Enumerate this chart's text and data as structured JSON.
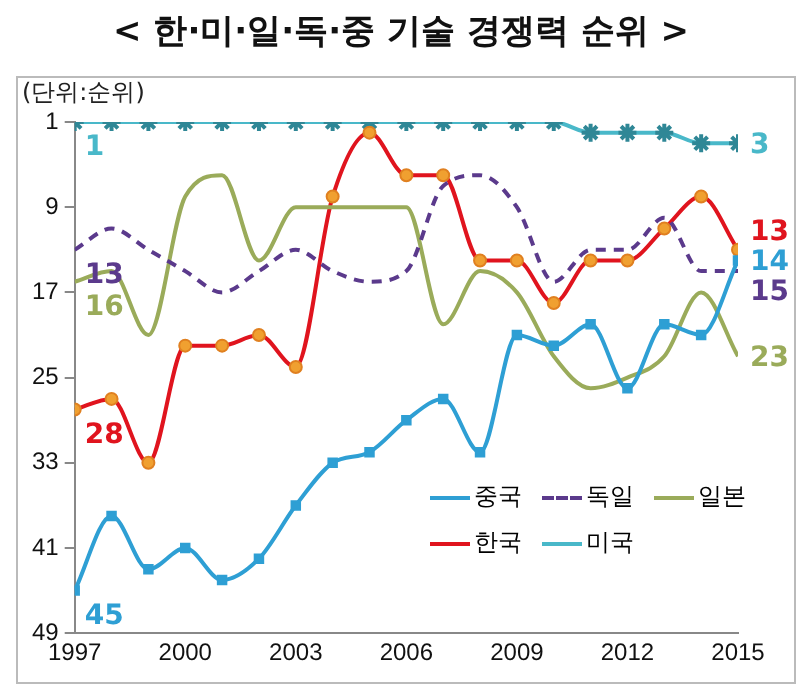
{
  "chart_data": {
    "type": "line",
    "title": "< 한·미·일·독·중 기술 경쟁력 순위 >",
    "ylabel": "(단위:순위)",
    "x": [
      1997,
      1998,
      1999,
      2000,
      2001,
      2002,
      2003,
      2004,
      2005,
      2006,
      2007,
      2008,
      2009,
      2010,
      2011,
      2012,
      2013,
      2014,
      2015
    ],
    "xlim": [
      1997,
      2015
    ],
    "xticks": [
      1997,
      2000,
      2003,
      2006,
      2009,
      2012,
      2015
    ],
    "ylim": [
      49,
      1
    ],
    "yticks": [
      1,
      9,
      17,
      25,
      33,
      41,
      49
    ],
    "grid": false,
    "legend": "bottom right",
    "series": [
      {
        "name": "중국",
        "color": "#2e9fd4",
        "marker": "square",
        "values": [
          45,
          38,
          43,
          41,
          44,
          42,
          37,
          33,
          32,
          29,
          27,
          32,
          21,
          22,
          20,
          26,
          20,
          21,
          14
        ],
        "value_labels": [
          "45",
          null,
          null,
          null,
          null,
          null,
          null,
          null,
          null,
          null,
          null,
          null,
          null,
          null,
          null,
          null,
          null,
          null,
          "14"
        ]
      },
      {
        "name": "독일",
        "color": "#5b3a8c",
        "marker": "none",
        "line_style": "dashed",
        "values": [
          13,
          11,
          13,
          15,
          17,
          15,
          13,
          15,
          16,
          15,
          7,
          6,
          9,
          16,
          13,
          13,
          10,
          15,
          15
        ],
        "value_labels": [
          "13",
          null,
          null,
          null,
          null,
          null,
          null,
          null,
          null,
          null,
          null,
          null,
          null,
          null,
          null,
          null,
          null,
          null,
          "15"
        ]
      },
      {
        "name": "일본",
        "color": "#9aab5a",
        "marker": "none",
        "values": [
          16,
          15,
          21,
          8,
          6,
          14,
          9,
          9,
          9,
          9,
          20,
          15,
          17,
          23,
          26,
          25,
          23,
          17,
          23
        ],
        "value_labels": [
          "16",
          null,
          null,
          null,
          null,
          null,
          null,
          null,
          null,
          null,
          null,
          null,
          null,
          null,
          null,
          null,
          null,
          null,
          "23"
        ]
      },
      {
        "name": "한국",
        "color": "#e0141e",
        "marker": "circle",
        "values": [
          28,
          27,
          33,
          22,
          22,
          21,
          24,
          8,
          2,
          6,
          6,
          14,
          14,
          18,
          14,
          14,
          11,
          8,
          13
        ],
        "value_labels": [
          "28",
          null,
          null,
          null,
          null,
          null,
          null,
          null,
          null,
          null,
          null,
          null,
          null,
          null,
          null,
          null,
          null,
          null,
          "13"
        ]
      },
      {
        "name": "미국",
        "color": "#49b8c9",
        "marker": "cross",
        "values": [
          1,
          1,
          1,
          1,
          1,
          1,
          1,
          1,
          1,
          1,
          1,
          1,
          1,
          1,
          2,
          2,
          2,
          3,
          3
        ],
        "value_labels": [
          "1",
          null,
          null,
          null,
          null,
          null,
          null,
          null,
          null,
          null,
          null,
          null,
          null,
          null,
          null,
          null,
          null,
          null,
          "3"
        ]
      }
    ]
  }
}
